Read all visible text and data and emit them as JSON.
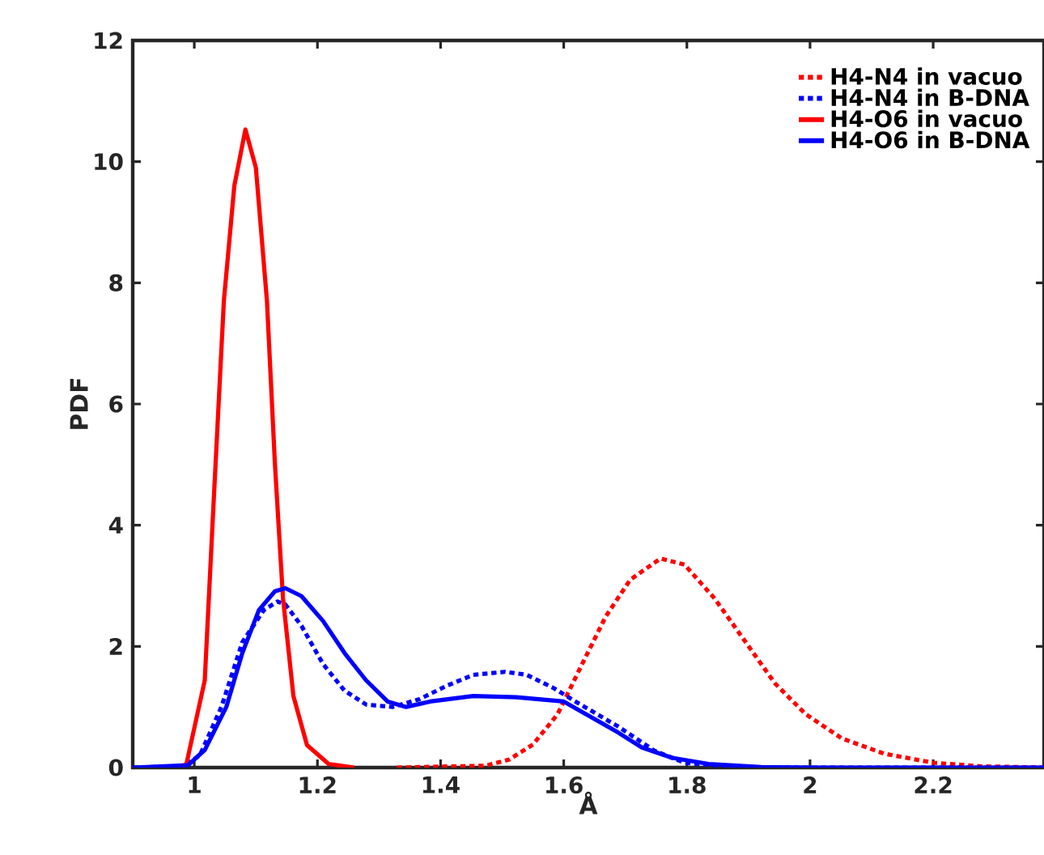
{
  "chart_data": {
    "type": "line",
    "xlabel": "Å",
    "ylabel": "PDF",
    "xlim": [
      0.9,
      2.38
    ],
    "ylim": [
      0,
      12
    ],
    "xticks": [
      1,
      1.2,
      1.4,
      1.6,
      1.8,
      2,
      2.2
    ],
    "yticks": [
      0,
      2,
      4,
      6,
      8,
      10,
      12
    ],
    "grid": false,
    "legend": "top right",
    "series": [
      {
        "name": "H4-N4 in vacuo",
        "color": "#ff0000",
        "line_style": "dotted",
        "x": [
          1.329,
          1.472,
          1.511,
          1.55,
          1.59,
          1.629,
          1.668,
          1.708,
          1.757,
          1.796,
          1.845,
          1.894,
          1.943,
          1.993,
          2.052,
          2.12,
          2.2,
          2.278,
          2.38
        ],
        "values": [
          0,
          0.03,
          0.13,
          0.38,
          0.88,
          1.69,
          2.49,
          3.1,
          3.45,
          3.35,
          2.79,
          2.09,
          1.39,
          0.88,
          0.48,
          0.23,
          0.08,
          0.02,
          0
        ]
      },
      {
        "name": "H4-N4 in B-DNA",
        "color": "#0000ff",
        "line_style": "dotted",
        "x": [
          0.9,
          0.98,
          1.009,
          1.044,
          1.078,
          1.113,
          1.135,
          1.148,
          1.174,
          1.209,
          1.244,
          1.279,
          1.322,
          1.366,
          1.41,
          1.453,
          1.505,
          1.54,
          1.584,
          1.619,
          1.688,
          1.747,
          1.796,
          1.875,
          2.0,
          2.38
        ],
        "values": [
          0,
          0.02,
          0.2,
          1.0,
          2.07,
          2.6,
          2.74,
          2.69,
          2.34,
          1.71,
          1.27,
          1.04,
          1.0,
          1.13,
          1.35,
          1.53,
          1.58,
          1.53,
          1.31,
          1.09,
          0.68,
          0.28,
          0.08,
          0.01,
          0,
          0
        ]
      },
      {
        "name": "H4-O6 in vacuo",
        "color": "#ff0000",
        "line_style": "solid",
        "x": [
          0.97,
          0.987,
          1.017,
          1.03,
          1.048,
          1.065,
          1.083,
          1.1,
          1.118,
          1.131,
          1.144,
          1.161,
          1.183,
          1.218,
          1.26
        ],
        "values": [
          0,
          0.05,
          1.44,
          4.1,
          7.7,
          9.6,
          10.53,
          9.9,
          7.7,
          5.0,
          2.8,
          1.18,
          0.37,
          0.06,
          0
        ]
      },
      {
        "name": "H4-O6 in B-DNA",
        "color": "#0000ff",
        "line_style": "solid",
        "x": [
          0.9,
          0.99,
          1.017,
          1.052,
          1.078,
          1.105,
          1.131,
          1.148,
          1.174,
          1.209,
          1.244,
          1.279,
          1.314,
          1.344,
          1.383,
          1.453,
          1.523,
          1.6,
          1.688,
          1.727,
          1.776,
          1.835,
          1.92,
          2.0,
          2.38
        ],
        "values": [
          0,
          0.04,
          0.29,
          1.0,
          1.89,
          2.6,
          2.91,
          2.96,
          2.83,
          2.42,
          1.89,
          1.44,
          1.09,
          1.0,
          1.09,
          1.18,
          1.16,
          1.09,
          0.58,
          0.33,
          0.16,
          0.06,
          0.01,
          0,
          0
        ]
      }
    ]
  }
}
